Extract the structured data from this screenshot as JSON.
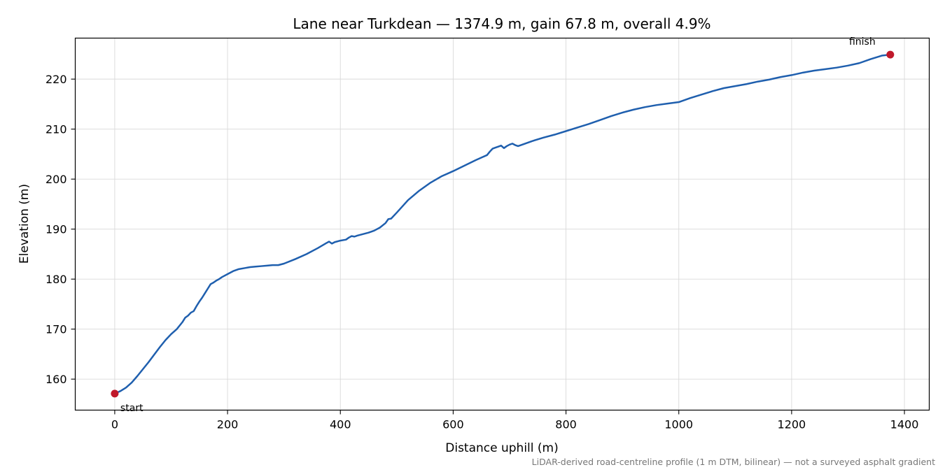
{
  "chart_data": {
    "type": "line",
    "title": "Lane near Turkdean — 1374.9 m, gain 67.8 m, overall 4.9%",
    "xlabel": "Distance uphill (m)",
    "ylabel": "Elevation (m)",
    "xlim": [
      -70,
      1444
    ],
    "ylim": [
      153.8,
      228.2
    ],
    "xticks": [
      0,
      200,
      400,
      600,
      800,
      1000,
      1200,
      1400
    ],
    "yticks": [
      160,
      170,
      180,
      190,
      200,
      210,
      220
    ],
    "grid": true,
    "line_color": "#1f5fae",
    "marker_color": "#c0192b",
    "series": [
      {
        "x": [
          0,
          10,
          20,
          30,
          40,
          50,
          60,
          70,
          80,
          90,
          100,
          110,
          120,
          125,
          130,
          135,
          140,
          145,
          150,
          155,
          160,
          165,
          170,
          175,
          180,
          185,
          190,
          200,
          210,
          220,
          230,
          240,
          250,
          260,
          270,
          280,
          290,
          300,
          320,
          340,
          360,
          375,
          380,
          385,
          390,
          400,
          410,
          415,
          420,
          425,
          430,
          440,
          450,
          460,
          470,
          480,
          485,
          490,
          500,
          520,
          540,
          560,
          580,
          600,
          620,
          640,
          650,
          660,
          665,
          670,
          675,
          680,
          685,
          690,
          695,
          700,
          705,
          710,
          715,
          720,
          740,
          760,
          780,
          800,
          820,
          840,
          860,
          880,
          900,
          920,
          940,
          960,
          980,
          1000,
          1020,
          1040,
          1060,
          1080,
          1100,
          1120,
          1140,
          1160,
          1180,
          1200,
          1220,
          1240,
          1260,
          1280,
          1300,
          1320,
          1340,
          1360,
          1374.9
        ],
        "y": [
          157.1,
          157.6,
          158.3,
          159.3,
          160.6,
          162.0,
          163.4,
          164.9,
          166.4,
          167.8,
          169.0,
          170.0,
          171.4,
          172.3,
          172.7,
          173.3,
          173.6,
          174.6,
          175.5,
          176.3,
          177.2,
          178.1,
          179.0,
          179.3,
          179.7,
          180.0,
          180.4,
          181.0,
          181.6,
          182.0,
          182.2,
          182.4,
          182.5,
          182.6,
          182.7,
          182.8,
          182.8,
          183.1,
          184.0,
          185.0,
          186.2,
          187.2,
          187.5,
          187.1,
          187.4,
          187.7,
          187.9,
          188.3,
          188.6,
          188.5,
          188.7,
          189.0,
          189.3,
          189.7,
          190.3,
          191.2,
          192.0,
          192.1,
          193.3,
          195.8,
          197.7,
          199.3,
          200.6,
          201.6,
          202.7,
          203.8,
          204.3,
          204.8,
          205.5,
          206.1,
          206.3,
          206.5,
          206.7,
          206.2,
          206.6,
          206.9,
          207.1,
          206.8,
          206.6,
          206.8,
          207.6,
          208.3,
          208.9,
          209.6,
          210.3,
          211.0,
          211.8,
          212.6,
          213.3,
          213.9,
          214.4,
          214.8,
          215.1,
          215.4,
          216.2,
          216.9,
          217.6,
          218.2,
          218.6,
          219.0,
          219.5,
          219.9,
          220.4,
          220.8,
          221.3,
          221.7,
          222.0,
          222.3,
          222.7,
          223.2,
          224.0,
          224.7,
          224.9
        ]
      }
    ],
    "annotations": [
      {
        "text": "start",
        "x": 0,
        "y": 157.1
      },
      {
        "text": "finish",
        "x": 1374.9,
        "y": 224.9
      }
    ],
    "footnote": "LiDAR-derived road-centreline profile (1 m DTM, bilinear) — not a surveyed asphalt gradient"
  }
}
